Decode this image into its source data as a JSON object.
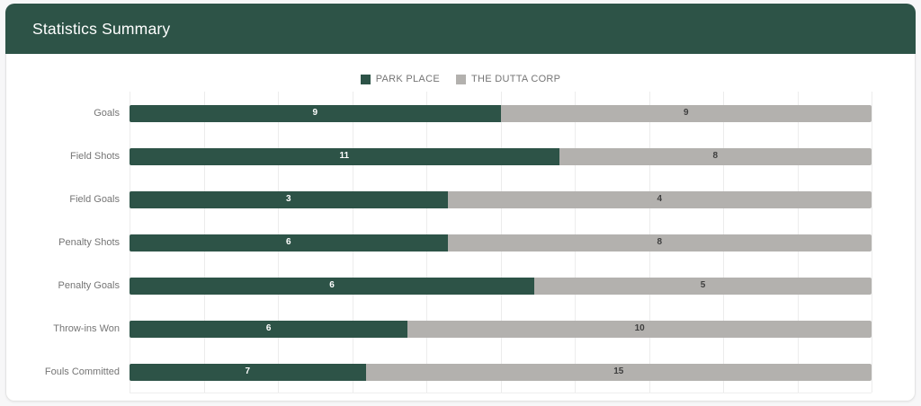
{
  "header": {
    "title": "Statistics Summary"
  },
  "colors": {
    "header_bg": "#2d5347",
    "team1": "#2d5347",
    "team2": "#b3b1ae",
    "page_bg": "#f7f7f8",
    "grid": "#ececec",
    "category_label": "#757575"
  },
  "chart_data": {
    "type": "bar",
    "orientation": "horizontal",
    "stacked": "percent",
    "title": "Statistics Summary",
    "legend_position": "top",
    "grid": true,
    "categories": [
      "Goals",
      "Field Shots",
      "Field Goals",
      "Penalty Shots",
      "Penalty Goals",
      "Throw-ins Won",
      "Fouls Committed"
    ],
    "series": [
      {
        "name": "PARK PLACE",
        "color": "#2d5347",
        "values": [
          9,
          11,
          3,
          6,
          6,
          6,
          7
        ]
      },
      {
        "name": "THE DUTTA CORP",
        "color": "#b3b1ae",
        "values": [
          9,
          8,
          4,
          8,
          5,
          10,
          15
        ]
      }
    ]
  }
}
